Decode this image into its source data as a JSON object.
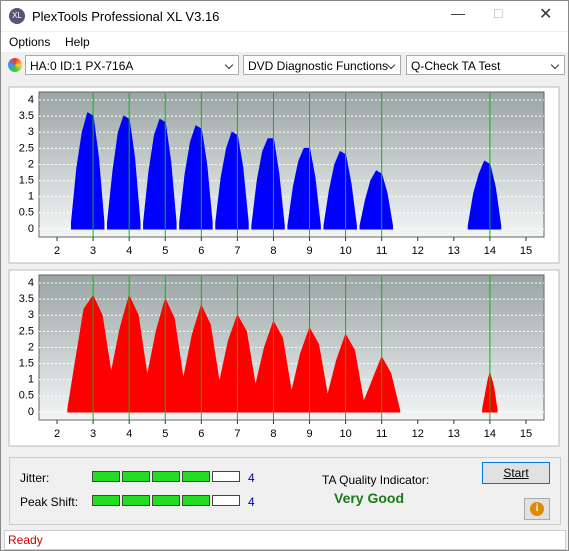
{
  "window": {
    "title": "PlexTools Professional XL V3.16",
    "menu": [
      "Options",
      "Help"
    ],
    "selectors": [
      "HA:0 ID:1  PX-716A",
      "DVD Diagnostic Functions",
      "Q-Check TA Test"
    ],
    "jitter": {
      "label": "Jitter:",
      "value": 4
    },
    "peak_shift": {
      "label": "Peak Shift:",
      "value": 4
    },
    "ta_quality": {
      "label": "TA Quality Indicator:",
      "result": "Very Good"
    },
    "button": "Start",
    "status": "Ready"
  },
  "chart_data": [
    {
      "type": "area",
      "color": "#0000ff",
      "reference_color": "#00c000",
      "reference_x": [
        3,
        4,
        5,
        6,
        7,
        8,
        9,
        10,
        11,
        14
      ],
      "xlim": [
        1.5,
        15.5
      ],
      "xticks": [
        2,
        3,
        4,
        5,
        6,
        7,
        8,
        9,
        10,
        11,
        12,
        13,
        14,
        15
      ],
      "ylim": [
        -0.25,
        4.25
      ],
      "yticks": [
        0,
        0.5,
        1,
        1.5,
        2,
        2.5,
        3,
        3.5,
        4
      ],
      "grid": true,
      "x": [
        2.4,
        2.55,
        2.7,
        2.85,
        3,
        3.15,
        3.3,
        3.5,
        3.4,
        3.55,
        3.7,
        3.85,
        4,
        4.15,
        4.3,
        4.5,
        4.4,
        4.55,
        4.7,
        4.85,
        5,
        5.15,
        5.3,
        5.5,
        5.4,
        5.55,
        5.7,
        5.85,
        6,
        6.15,
        6.3,
        6.5,
        6.4,
        6.55,
        6.7,
        6.85,
        7,
        7.15,
        7.3,
        7.5,
        7.4,
        7.55,
        7.7,
        7.85,
        8,
        8.15,
        8.3,
        8.5,
        8.4,
        8.55,
        8.7,
        8.85,
        9,
        9.15,
        9.3,
        9.5,
        9.4,
        9.55,
        9.7,
        9.85,
        10,
        10.15,
        10.3,
        10.5,
        10.4,
        10.55,
        10.7,
        10.85,
        11,
        11.15,
        11.3,
        12,
        13.4,
        13.55,
        13.7,
        13.85,
        14,
        14.15,
        14.3
      ],
      "values": [
        0.2,
        1.9,
        3.0,
        3.6,
        3.5,
        2.2,
        0.2,
        null,
        0.2,
        1.8,
        3.0,
        3.5,
        3.4,
        2.2,
        0.2,
        null,
        0.2,
        1.8,
        2.9,
        3.4,
        3.3,
        2.1,
        0.2,
        null,
        0.2,
        1.7,
        2.7,
        3.2,
        3.1,
        2.0,
        0.2,
        null,
        0.2,
        1.6,
        2.5,
        3.0,
        2.9,
        1.9,
        0.2,
        null,
        0.1,
        1.5,
        2.4,
        2.8,
        2.8,
        1.7,
        0.1,
        null,
        0.1,
        1.3,
        2.1,
        2.5,
        2.5,
        1.6,
        0.1,
        null,
        0.1,
        1.2,
        2.0,
        2.4,
        2.3,
        1.4,
        0.1,
        null,
        0.1,
        0.9,
        1.5,
        1.8,
        1.7,
        1.1,
        0.1,
        null,
        0.1,
        1.1,
        1.7,
        2.1,
        2.0,
        1.3,
        0.1
      ]
    },
    {
      "type": "area",
      "color": "#ff0000",
      "reference_color": "#00c000",
      "reference_x": [
        3,
        4,
        5,
        6,
        7,
        8,
        9,
        10,
        11,
        14
      ],
      "xlim": [
        1.5,
        15.5
      ],
      "xticks": [
        2,
        3,
        4,
        5,
        6,
        7,
        8,
        9,
        10,
        11,
        12,
        13,
        14,
        15
      ],
      "ylim": [
        -0.25,
        4.25
      ],
      "yticks": [
        0,
        0.5,
        1,
        1.5,
        2,
        2.5,
        3,
        3.5,
        4
      ],
      "grid": true,
      "x": [
        2.3,
        2.5,
        2.75,
        3,
        3.25,
        3.5,
        3.75,
        4,
        4.25,
        4.5,
        4.75,
        5,
        5.25,
        5.5,
        5.75,
        6,
        6.25,
        6.5,
        6.75,
        7,
        7.25,
        7.5,
        7.75,
        8,
        8.25,
        8.5,
        8.75,
        9,
        9.25,
        9.5,
        9.75,
        10,
        10.25,
        10.5,
        10.75,
        11,
        11.25,
        11.5,
        12,
        13.8,
        13.95,
        14,
        14.1,
        14.2
      ],
      "values": [
        0.1,
        1.5,
        3.2,
        3.6,
        3.0,
        1.2,
        2.6,
        3.6,
        3.0,
        1.1,
        2.5,
        3.5,
        2.9,
        1.0,
        2.4,
        3.3,
        2.7,
        0.9,
        2.2,
        3.0,
        2.5,
        0.8,
        2.0,
        2.8,
        2.3,
        0.6,
        1.8,
        2.6,
        2.1,
        0.5,
        1.6,
        2.4,
        1.9,
        0.3,
        1.0,
        1.7,
        1.2,
        0.05,
        null,
        0.1,
        1.0,
        1.2,
        0.8,
        0.05
      ]
    }
  ]
}
